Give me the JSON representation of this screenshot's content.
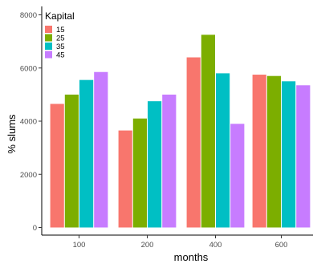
{
  "chart_data": {
    "type": "bar",
    "categories": [
      "100",
      "200",
      "400",
      "600"
    ],
    "series": [
      {
        "name": "15",
        "color": "#F8766D",
        "values": [
          4650,
          3650,
          6400,
          5750
        ]
      },
      {
        "name": "25",
        "color": "#7CAE00",
        "values": [
          5000,
          4100,
          7250,
          5700
        ]
      },
      {
        "name": "35",
        "color": "#00BFC4",
        "values": [
          5550,
          4750,
          5800,
          5500
        ]
      },
      {
        "name": "45",
        "color": "#C77CFF",
        "values": [
          5850,
          5000,
          3900,
          5350
        ]
      }
    ],
    "legend_title": "Kapital",
    "legend_position": "top-left",
    "xlabel": "months",
    "ylabel": "% slums",
    "ylim": [
      0,
      8000
    ],
    "yticks": [
      0,
      2000,
      4000,
      6000,
      8000
    ],
    "ytick_labels": [
      "0",
      "2000",
      "4000",
      "6000",
      "8000"
    ],
    "grid": false
  }
}
